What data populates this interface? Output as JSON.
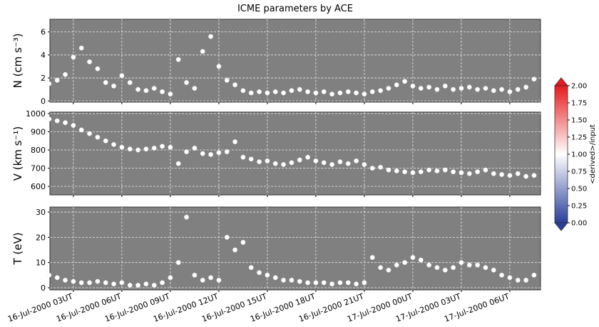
{
  "chart_data": [
    {
      "type": "scatter",
      "title": "ICME parameters by ACE",
      "y_label": "N (cm s⁻³)",
      "x": [
        "2000-07-16T01:30",
        "2000-07-16T02:00",
        "2000-07-16T02:30",
        "2000-07-16T03:00",
        "2000-07-16T03:30",
        "2000-07-16T04:00",
        "2000-07-16T04:30",
        "2000-07-16T05:00",
        "2000-07-16T05:30",
        "2000-07-16T06:00",
        "2000-07-16T06:30",
        "2000-07-16T07:00",
        "2000-07-16T07:30",
        "2000-07-16T08:00",
        "2000-07-16T08:30",
        "2000-07-16T09:00",
        "2000-07-16T09:30",
        "2000-07-16T10:00",
        "2000-07-16T10:30",
        "2000-07-16T11:00",
        "2000-07-16T11:30",
        "2000-07-16T12:00",
        "2000-07-16T12:30",
        "2000-07-16T13:00",
        "2000-07-16T13:30",
        "2000-07-16T14:00",
        "2000-07-16T14:30",
        "2000-07-16T15:00",
        "2000-07-16T15:30",
        "2000-07-16T16:00",
        "2000-07-16T16:30",
        "2000-07-16T17:00",
        "2000-07-16T17:30",
        "2000-07-16T18:00",
        "2000-07-16T18:30",
        "2000-07-16T19:00",
        "2000-07-16T19:30",
        "2000-07-16T20:00",
        "2000-07-16T20:30",
        "2000-07-16T21:00",
        "2000-07-16T21:30",
        "2000-07-16T22:00",
        "2000-07-16T22:30",
        "2000-07-16T23:00",
        "2000-07-16T23:30",
        "2000-07-17T00:00",
        "2000-07-17T00:30",
        "2000-07-17T01:00",
        "2000-07-17T01:30",
        "2000-07-17T02:00",
        "2000-07-17T02:30",
        "2000-07-17T03:00",
        "2000-07-17T03:30",
        "2000-07-17T04:00",
        "2000-07-17T04:30",
        "2000-07-17T05:00",
        "2000-07-17T05:30",
        "2000-07-17T06:00",
        "2000-07-17T06:30",
        "2000-07-17T07:00",
        "2000-07-17T07:30"
      ],
      "values": [
        1.5,
        1.8,
        2.3,
        3.8,
        4.6,
        3.4,
        2.8,
        1.6,
        1.3,
        2.2,
        1.6,
        1.0,
        0.9,
        1.1,
        0.8,
        0.6,
        3.6,
        1.6,
        1.1,
        4.3,
        5.6,
        3.0,
        1.8,
        1.4,
        0.9,
        0.7,
        0.8,
        0.7,
        0.8,
        0.7,
        0.9,
        1.0,
        0.8,
        0.7,
        0.8,
        0.6,
        0.7,
        0.8,
        0.7,
        0.6,
        0.8,
        0.9,
        1.1,
        1.4,
        1.7,
        1.3,
        1.1,
        1.2,
        1.0,
        1.3,
        1.0,
        1.1,
        1.2,
        1.0,
        1.1,
        0.9,
        1.0,
        0.8,
        1.0,
        1.2,
        1.9
      ],
      "color": "#ffffff",
      "xlim": [
        "2000-07-16T01:33",
        "2000-07-17T07:54"
      ],
      "ylim": [
        -0.1,
        7.1
      ],
      "yticks": [
        0,
        2,
        4,
        6
      ],
      "grid": true,
      "colorbar": {
        "label": "<derived>/input",
        "lim": [
          0,
          2
        ],
        "colors": [
          "#2a3f9a",
          "#ffffff",
          "#e8191c"
        ],
        "ticks": [
          {
            "value": 0,
            "label": "0.00"
          },
          {
            "value": 0.25,
            "label": "0.25"
          },
          {
            "value": 0.5,
            "label": "0.50"
          },
          {
            "value": 0.75,
            "label": "0.75"
          },
          {
            "value": 1,
            "label": "1.00"
          },
          {
            "value": 1.25,
            "label": "1.25"
          },
          {
            "value": 1.5,
            "label": "1.50"
          },
          {
            "value": 1.75,
            "label": "1.75"
          },
          {
            "value": 2,
            "label": "2.00"
          }
        ]
      }
    },
    {
      "type": "scatter",
      "y_label": "V (km s⁻¹)",
      "x": [
        "2000-07-16T01:30",
        "2000-07-16T02:00",
        "2000-07-16T02:30",
        "2000-07-16T03:00",
        "2000-07-16T03:30",
        "2000-07-16T04:00",
        "2000-07-16T04:30",
        "2000-07-16T05:00",
        "2000-07-16T05:30",
        "2000-07-16T06:00",
        "2000-07-16T06:30",
        "2000-07-16T07:00",
        "2000-07-16T07:30",
        "2000-07-16T08:00",
        "2000-07-16T08:30",
        "2000-07-16T09:00",
        "2000-07-16T09:30",
        "2000-07-16T10:00",
        "2000-07-16T10:30",
        "2000-07-16T11:00",
        "2000-07-16T11:30",
        "2000-07-16T12:00",
        "2000-07-16T12:30",
        "2000-07-16T13:00",
        "2000-07-16T13:30",
        "2000-07-16T14:00",
        "2000-07-16T14:30",
        "2000-07-16T15:00",
        "2000-07-16T15:30",
        "2000-07-16T16:00",
        "2000-07-16T16:30",
        "2000-07-16T17:00",
        "2000-07-16T17:30",
        "2000-07-16T18:00",
        "2000-07-16T18:30",
        "2000-07-16T19:00",
        "2000-07-16T19:30",
        "2000-07-16T20:00",
        "2000-07-16T20:30",
        "2000-07-16T21:00",
        "2000-07-16T21:30",
        "2000-07-16T22:00",
        "2000-07-16T22:30",
        "2000-07-16T23:00",
        "2000-07-16T23:30",
        "2000-07-17T00:00",
        "2000-07-17T00:30",
        "2000-07-17T01:00",
        "2000-07-17T01:30",
        "2000-07-17T02:00",
        "2000-07-17T02:30",
        "2000-07-17T03:00",
        "2000-07-17T03:30",
        "2000-07-17T04:00",
        "2000-07-17T04:30",
        "2000-07-17T05:00",
        "2000-07-17T05:30",
        "2000-07-17T06:00",
        "2000-07-17T06:30",
        "2000-07-17T07:00",
        "2000-07-17T07:30"
      ],
      "values": [
        970,
        960,
        950,
        935,
        910,
        890,
        870,
        850,
        830,
        815,
        805,
        800,
        805,
        810,
        820,
        815,
        725,
        790,
        810,
        780,
        775,
        785,
        790,
        845,
        760,
        750,
        735,
        740,
        725,
        720,
        730,
        745,
        760,
        740,
        730,
        720,
        735,
        725,
        740,
        720,
        700,
        705,
        690,
        685,
        680,
        675,
        680,
        690,
        685,
        690,
        680,
        675,
        670,
        680,
        690,
        670,
        665,
        660,
        670,
        655,
        660
      ],
      "color": "#ffffff",
      "xlim": [
        "2000-07-16T01:33",
        "2000-07-17T07:54"
      ],
      "ylim": [
        553,
        1008
      ],
      "yticks": [
        600,
        700,
        800,
        900,
        1000
      ],
      "grid": true
    },
    {
      "type": "scatter",
      "y_label": "T (eV)",
      "x": [
        "2000-07-16T01:30",
        "2000-07-16T02:00",
        "2000-07-16T02:30",
        "2000-07-16T03:00",
        "2000-07-16T03:30",
        "2000-07-16T04:00",
        "2000-07-16T04:30",
        "2000-07-16T05:00",
        "2000-07-16T05:30",
        "2000-07-16T06:00",
        "2000-07-16T06:30",
        "2000-07-16T07:00",
        "2000-07-16T07:30",
        "2000-07-16T08:00",
        "2000-07-16T08:30",
        "2000-07-16T09:00",
        "2000-07-16T09:30",
        "2000-07-16T10:00",
        "2000-07-16T10:30",
        "2000-07-16T11:00",
        "2000-07-16T11:30",
        "2000-07-16T12:00",
        "2000-07-16T12:30",
        "2000-07-16T13:00",
        "2000-07-16T13:30",
        "2000-07-16T14:00",
        "2000-07-16T14:30",
        "2000-07-16T15:00",
        "2000-07-16T15:30",
        "2000-07-16T16:00",
        "2000-07-16T16:30",
        "2000-07-16T17:00",
        "2000-07-16T17:30",
        "2000-07-16T18:00",
        "2000-07-16T18:30",
        "2000-07-16T19:00",
        "2000-07-16T19:30",
        "2000-07-16T20:00",
        "2000-07-16T20:30",
        "2000-07-16T21:00",
        "2000-07-16T21:30",
        "2000-07-16T22:00",
        "2000-07-16T22:30",
        "2000-07-16T23:00",
        "2000-07-16T23:30",
        "2000-07-17T00:00",
        "2000-07-17T00:30",
        "2000-07-17T01:00",
        "2000-07-17T01:30",
        "2000-07-17T02:00",
        "2000-07-17T02:30",
        "2000-07-17T03:00",
        "2000-07-17T03:30",
        "2000-07-17T04:00",
        "2000-07-17T04:30",
        "2000-07-17T05:00",
        "2000-07-17T05:30",
        "2000-07-17T06:00",
        "2000-07-17T06:30",
        "2000-07-17T07:00",
        "2000-07-17T07:30"
      ],
      "values": [
        5,
        4,
        3,
        2.5,
        2,
        2,
        2.5,
        2,
        1.5,
        2,
        1,
        1,
        1.5,
        1,
        2,
        4,
        10,
        28,
        5,
        3,
        4,
        3,
        20,
        15,
        18,
        8,
        6,
        5,
        4,
        3,
        3,
        2.5,
        2,
        2,
        2,
        1.5,
        2,
        2,
        1.5,
        2,
        12,
        8,
        7,
        9,
        10,
        12,
        11,
        9,
        8,
        7,
        8,
        10,
        9,
        9,
        8,
        7,
        5,
        4,
        3,
        3,
        5
      ],
      "color": "#ffffff",
      "xlim": [
        "2000-07-16T01:33",
        "2000-07-17T07:54"
      ],
      "ylim": [
        -0.85,
        32
      ],
      "yticks": [
        0,
        10,
        20,
        30
      ],
      "grid": true,
      "xticks": [
        {
          "value": "2000-07-16T03:00",
          "label": "16-Jul-2000 03UT"
        },
        {
          "value": "2000-07-16T06:00",
          "label": "16-Jul-2000 06UT"
        },
        {
          "value": "2000-07-16T09:00",
          "label": "16-Jul-2000 09UT"
        },
        {
          "value": "2000-07-16T12:00",
          "label": "16-Jul-2000 12UT"
        },
        {
          "value": "2000-07-16T15:00",
          "label": "16-Jul-2000 15UT"
        },
        {
          "value": "2000-07-16T18:00",
          "label": "16-Jul-2000 18UT"
        },
        {
          "value": "2000-07-16T21:00",
          "label": "16-Jul-2000 21UT"
        },
        {
          "value": "2000-07-17T00:00",
          "label": "17-Jul-2000 00UT"
        },
        {
          "value": "2000-07-17T03:00",
          "label": "17-Jul-2000 03UT"
        },
        {
          "value": "2000-07-17T06:00",
          "label": "17-Jul-2000 06UT"
        }
      ]
    }
  ]
}
